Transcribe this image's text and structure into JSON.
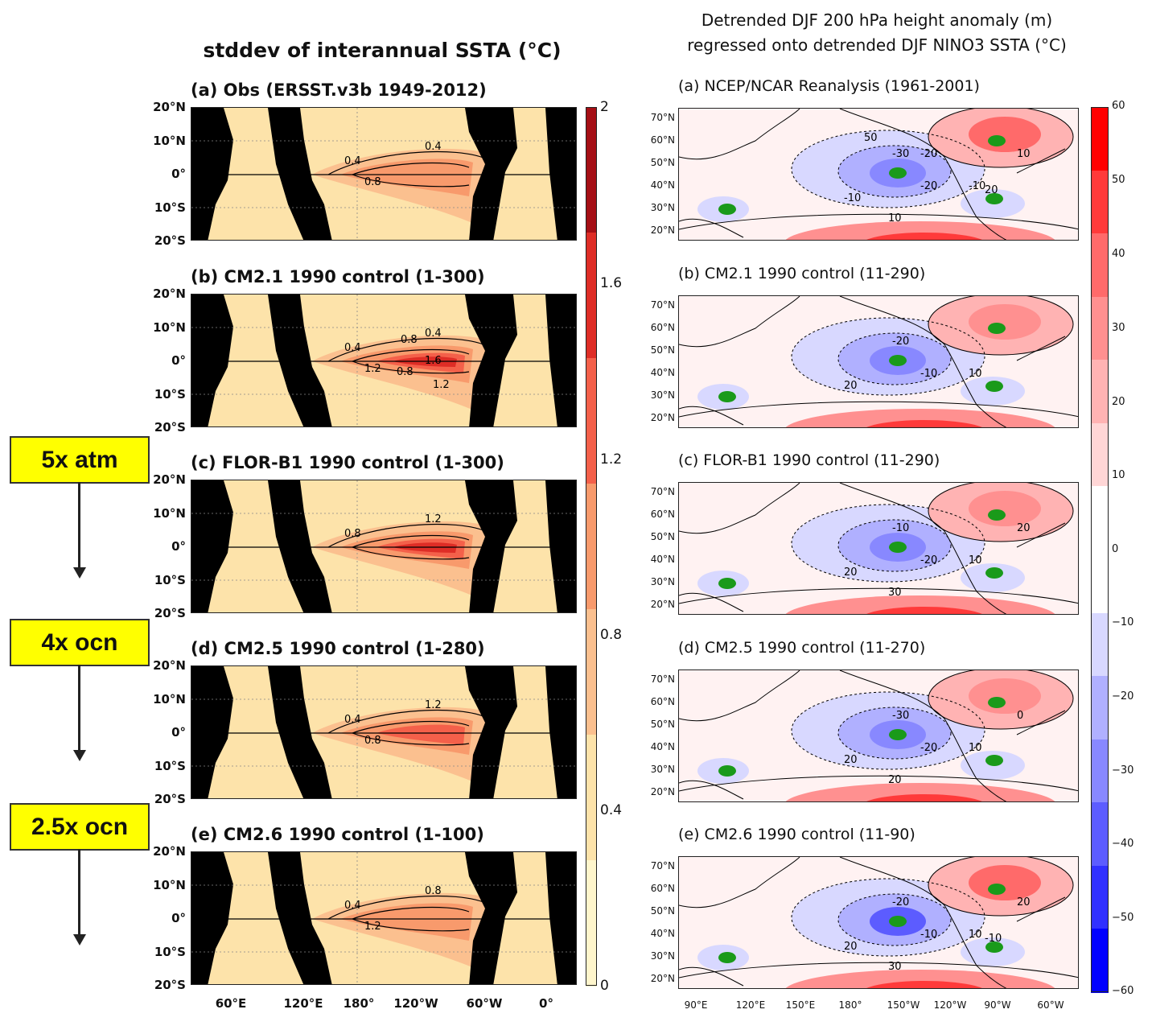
{
  "left": {
    "title": "stddev of interannual SSTA (°C)",
    "panels": [
      {
        "title": "(a) Obs (ERSST.v3b 1949-2012)",
        "contour_labels": [
          "0.4",
          "0.4",
          "0.8"
        ]
      },
      {
        "title": "(b) CM2.1 1990 control (1-300)",
        "contour_labels": [
          "0.4",
          "0.4",
          "1.2",
          "0.8",
          "1.6",
          "1.2",
          "0.8"
        ]
      },
      {
        "title": "(c) FLOR-B1 1990 control (1-300)",
        "contour_labels": [
          "0.8",
          "1.2"
        ]
      },
      {
        "title": "(d) CM2.5 1990 control (1-280)",
        "contour_labels": [
          "0.4",
          "1.2",
          "0.8"
        ]
      },
      {
        "title": "(e) CM2.6 1990 control (1-100)",
        "contour_labels": [
          "0.4",
          "0.8",
          "1.2"
        ]
      }
    ],
    "lat_labels": [
      "20°N",
      "10°N",
      "0°",
      "10°S",
      "20°S"
    ],
    "lon_labels": [
      "60°E",
      "120°E",
      "180°",
      "120°W",
      "60°W",
      "0°"
    ],
    "colorbar": {
      "labels": [
        "2",
        "1.6",
        "1.2",
        "0.8",
        "0.4",
        "0"
      ],
      "colors": [
        "#a50f15",
        "#de2d26",
        "#f4604a",
        "#f89a6c",
        "#fbc08f",
        "#fde3aa",
        "#fff6cc"
      ]
    }
  },
  "right": {
    "title_line1": "Detrended DJF 200 hPa height anomaly (m)",
    "title_line2": "regressed onto detrended DJF NINO3 SSTA (°C)",
    "panels": [
      {
        "title": "(a) NCEP/NCAR Reanalysis (1961-2001)",
        "contour_labels": [
          "-30",
          "-20",
          "-10",
          "-10",
          "10",
          "10",
          "20",
          "50",
          "-20"
        ]
      },
      {
        "title": "(b) CM2.1 1990 control (11-290)",
        "contour_labels": [
          "-20",
          "-10",
          "10",
          "20"
        ]
      },
      {
        "title": "(c) FLOR-B1 1990 control (11-290)",
        "contour_labels": [
          "-10",
          "-20",
          "10",
          "20",
          "30",
          "20"
        ]
      },
      {
        "title": "(d) CM2.5 1990 control (11-270)",
        "contour_labels": [
          "-30",
          "-20",
          "10",
          "20",
          "20",
          "0"
        ]
      },
      {
        "title": "(e) CM2.6 1990 control (11-90)",
        "contour_labels": [
          "-20",
          "-10",
          "10",
          "20",
          "30",
          "20",
          "-10"
        ]
      }
    ],
    "lat_labels": [
      "70°N",
      "60°N",
      "50°N",
      "40°N",
      "30°N",
      "20°N"
    ],
    "lon_labels": [
      "90°E",
      "120°E",
      "150°E",
      "180°",
      "150°W",
      "120°W",
      "90°W",
      "60°W"
    ],
    "colorbar": {
      "labels": [
        "60",
        "50",
        "40",
        "30",
        "20",
        "10",
        "0",
        "−10",
        "−20",
        "−30",
        "−40",
        "−50",
        "−60"
      ],
      "colors": [
        "#ff0000",
        "#ff3a3a",
        "#ff6a6a",
        "#ff9090",
        "#ffb3b3",
        "#ffd6d6",
        "#ffffff",
        "#ffffff",
        "#d8d8ff",
        "#b0b0ff",
        "#8888ff",
        "#5c5cff",
        "#3030ff",
        "#0000ff"
      ]
    }
  },
  "annotations": [
    {
      "label": "5x atm"
    },
    {
      "label": "4x ocn"
    },
    {
      "label": "2.5x ocn"
    }
  ]
}
